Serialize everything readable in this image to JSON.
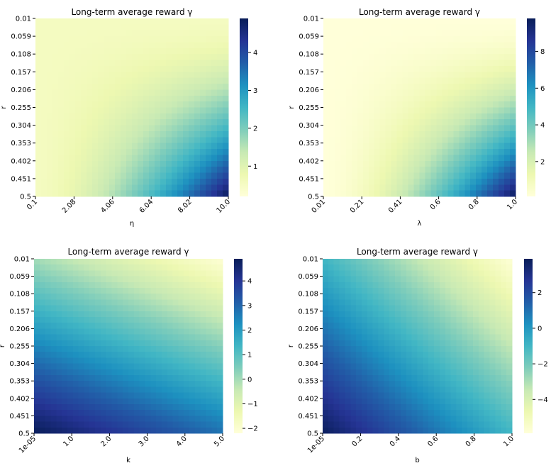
{
  "chart_data": [
    {
      "type": "heatmap",
      "title": "Long-term average reward γ",
      "xlabel": "η",
      "ylabel": "r",
      "x_ticks": [
        "0.1",
        "2.08",
        "4.06",
        "6.04",
        "8.02",
        "10.0"
      ],
      "y_ticks": [
        "0.01",
        "0.059",
        "0.108",
        "0.157",
        "0.206",
        "0.255",
        "0.304",
        "0.353",
        "0.402",
        "0.451",
        "0.5"
      ],
      "colormap": "YlGnBu",
      "colorbar_ticks": [
        "1",
        "2",
        "3",
        "4"
      ],
      "colorbar_range": [
        0.2,
        4.9
      ],
      "corners": {
        "top_left": 0.55,
        "top_right": 0.45,
        "bottom_left": 0.45,
        "bottom_right": 4.9
      }
    },
    {
      "type": "heatmap",
      "title": "Long-term average reward γ",
      "xlabel": "λ",
      "ylabel": "r",
      "x_ticks": [
        "0.01",
        "0.21",
        "0.41",
        "0.6",
        "0.8",
        "1.0"
      ],
      "y_ticks": [
        "0.01",
        "0.059",
        "0.108",
        "0.157",
        "0.206",
        "0.255",
        "0.304",
        "0.353",
        "0.402",
        "0.451",
        "0.5"
      ],
      "colormap": "YlGnBu",
      "colorbar_ticks": [
        "2",
        "4",
        "6",
        "8"
      ],
      "colorbar_range": [
        0.1,
        9.8
      ],
      "corners": {
        "top_left": 0.1,
        "top_right": 0.1,
        "bottom_left": 0.1,
        "bottom_right": 9.8
      }
    },
    {
      "type": "heatmap",
      "title": "Long-term average reward γ",
      "xlabel": "k",
      "ylabel": "r",
      "x_ticks": [
        "1e-05",
        "1.0",
        "2.0",
        "3.0",
        "4.0",
        "5.0"
      ],
      "y_ticks": [
        "0.01",
        "0.059",
        "0.108",
        "0.157",
        "0.206",
        "0.255",
        "0.304",
        "0.353",
        "0.402",
        "0.451",
        "0.5"
      ],
      "colormap": "YlGnBu",
      "colorbar_ticks": [
        "−2",
        "−1",
        "0",
        "1",
        "2",
        "3",
        "4"
      ],
      "colorbar_range": [
        -2.2,
        4.9
      ],
      "corners": {
        "top_left": 0.0,
        "top_right": -2.1,
        "bottom_left": 4.9,
        "bottom_right": 2.8
      }
    },
    {
      "type": "heatmap",
      "title": "Long-term average reward γ",
      "xlabel": "b",
      "ylabel": "r",
      "x_ticks": [
        "1e-05",
        "0.2",
        "0.4",
        "0.6",
        "0.8",
        "1.0"
      ],
      "y_ticks": [
        "0.01",
        "0.059",
        "0.108",
        "0.157",
        "0.206",
        "0.255",
        "0.304",
        "0.353",
        "0.402",
        "0.451",
        "0.5"
      ],
      "colormap": "YlGnBu",
      "colorbar_ticks": [
        "−4",
        "−2",
        "0",
        "2"
      ],
      "colorbar_range": [
        -5.9,
        3.9
      ],
      "corners": {
        "top_left": -1.0,
        "top_right": -5.8,
        "bottom_left": 3.8,
        "bottom_right": -1.0
      }
    }
  ]
}
